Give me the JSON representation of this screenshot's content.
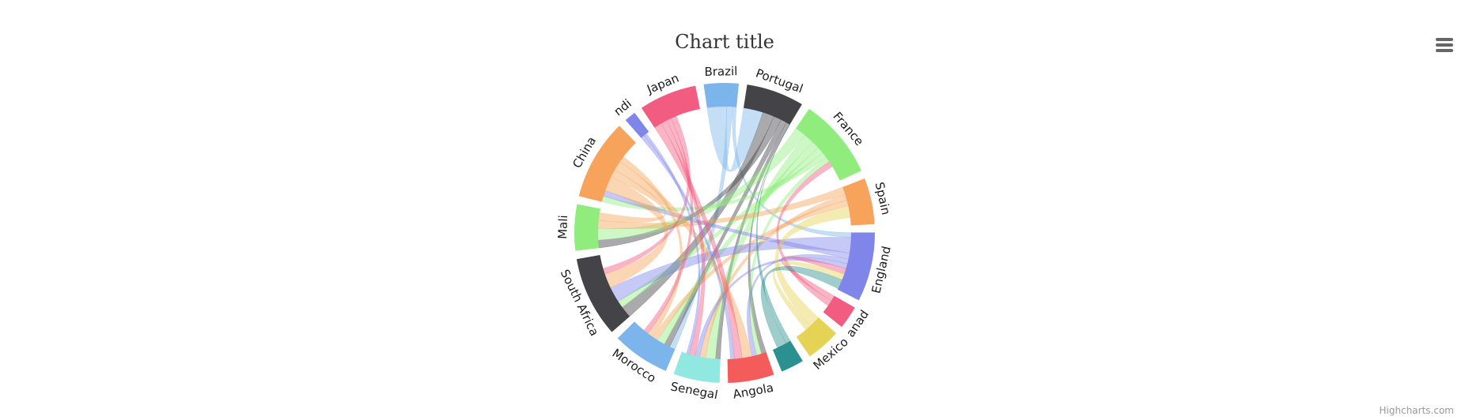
{
  "chart_data": {
    "type": "dependencywheel",
    "title": "Chart title",
    "credits": "Highcharts.com",
    "nodes": [
      {
        "name": "Brazil",
        "color": "#7cb5ec",
        "weight": 3
      },
      {
        "name": "Portugal",
        "color": "#434348",
        "weight": 5
      },
      {
        "name": "France",
        "color": "#90ed7d",
        "weight": 7
      },
      {
        "name": "Spain",
        "color": "#f7a35c",
        "weight": 4
      },
      {
        "name": "England",
        "color": "#8085e9",
        "weight": 6
      },
      {
        "name": "anad",
        "color": "#f15c80",
        "weight": 2
      },
      {
        "name": "Mexico",
        "color": "#e4d354",
        "weight": 3
      },
      {
        "name": "",
        "color": "#2b908f",
        "weight": 2
      },
      {
        "name": "Angola",
        "color": "#f45b5b",
        "weight": 4
      },
      {
        "name": "Senegal",
        "color": "#91e8e1",
        "weight": 4
      },
      {
        "name": "Morocco",
        "color": "#7cb5ec",
        "weight": 5
      },
      {
        "name": "South Africa",
        "color": "#434348",
        "weight": 7
      },
      {
        "name": "Mali",
        "color": "#90ed7d",
        "weight": 4
      },
      {
        "name": "China",
        "color": "#f7a35c",
        "weight": 7
      },
      {
        "name": "ndi",
        "color": "#8085e9",
        "weight": 1
      },
      {
        "name": "Japan",
        "color": "#f15c80",
        "weight": 5
      }
    ],
    "links": [
      {
        "from": "Brazil",
        "to": "Portugal",
        "weight": 2
      },
      {
        "from": "Brazil",
        "to": "Morocco",
        "weight": 0.6
      },
      {
        "from": "Brazil",
        "to": "England",
        "weight": 0.5
      },
      {
        "from": "Portugal",
        "to": "South Africa",
        "weight": 1.2
      },
      {
        "from": "Portugal",
        "to": "Mali",
        "weight": 0.8
      },
      {
        "from": "Portugal",
        "to": "Morocco",
        "weight": 0.6
      },
      {
        "from": "Portugal",
        "to": "Senegal",
        "weight": 0.5
      },
      {
        "from": "Portugal",
        "to": "Angola",
        "weight": 0.5
      },
      {
        "from": "France",
        "to": "Mali",
        "weight": 1.2
      },
      {
        "from": "France",
        "to": "Senegal",
        "weight": 1.0
      },
      {
        "from": "France",
        "to": "Morocco",
        "weight": 0.8
      },
      {
        "from": "France",
        "to": "South Africa",
        "weight": 0.7
      },
      {
        "from": "France",
        "to": "China",
        "weight": 0.6
      },
      {
        "from": "France",
        "to": "Angola",
        "weight": 0.5
      },
      {
        "from": "Spain",
        "to": "Mali",
        "weight": 0.8
      },
      {
        "from": "Spain",
        "to": "Senegal",
        "weight": 0.6
      },
      {
        "from": "Spain",
        "to": "Morocco",
        "weight": 0.6
      },
      {
        "from": "England",
        "to": "South Africa",
        "weight": 1.6
      },
      {
        "from": "England",
        "to": "China",
        "weight": 0.6
      },
      {
        "from": "England",
        "to": "Angola",
        "weight": 0.5
      },
      {
        "from": "England",
        "to": "Senegal",
        "weight": 0.5
      },
      {
        "from": "anad",
        "to": "England",
        "weight": 0.6
      },
      {
        "from": "anad",
        "to": "France",
        "weight": 0.6
      },
      {
        "from": "Mexico",
        "to": "Spain",
        "weight": 1.2
      },
      {
        "from": "Mexico",
        "to": "England",
        "weight": 0.6
      },
      {
        "from": "",
        "to": "Portugal",
        "weight": 0.5
      },
      {
        "from": "",
        "to": "England",
        "weight": 1.0
      },
      {
        "from": "China",
        "to": "South Africa",
        "weight": 1.5
      },
      {
        "from": "China",
        "to": "Mali",
        "weight": 0.8
      },
      {
        "from": "China",
        "to": "Angola",
        "weight": 1.0
      },
      {
        "from": "China",
        "to": "Morocco",
        "weight": 0.6
      },
      {
        "from": "Japan",
        "to": "Angola",
        "weight": 0.8
      },
      {
        "from": "Japan",
        "to": "Senegal",
        "weight": 0.6
      },
      {
        "from": "Japan",
        "to": "Morocco",
        "weight": 0.5
      },
      {
        "from": "Japan",
        "to": "South Africa",
        "weight": 0.6
      },
      {
        "from": "ndi",
        "to": "Angola",
        "weight": 0.4
      },
      {
        "from": "ndi",
        "to": "Senegal",
        "weight": 0.3
      }
    ]
  },
  "icons": {
    "export_menu": "hamburger-menu-icon"
  }
}
